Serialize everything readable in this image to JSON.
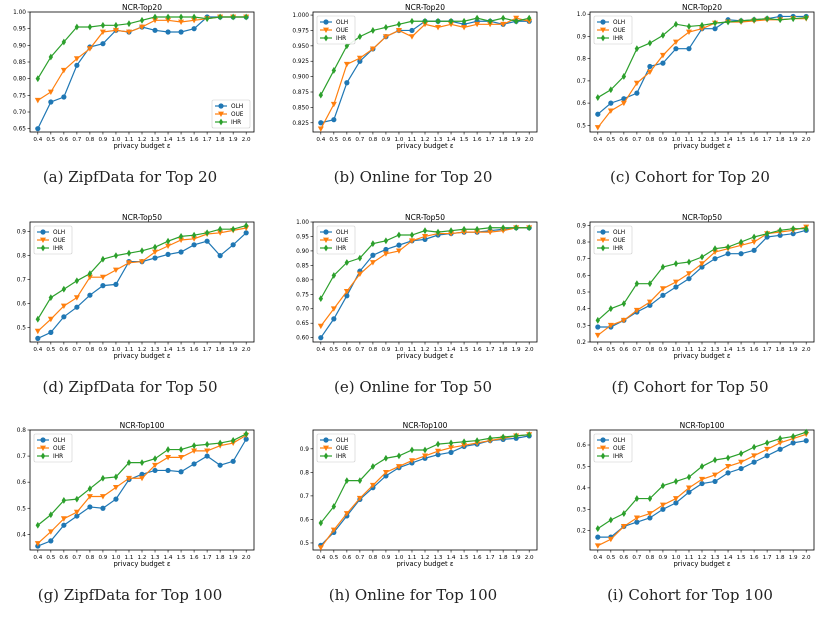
{
  "series_names": [
    "OLH",
    "OUE",
    "IHR"
  ],
  "colors": {
    "OLH": "#1f77b4",
    "OUE": "#ff7f0e",
    "IHR": "#2ca02c"
  },
  "markers": {
    "OLH": "circle",
    "OUE": "triangle-down",
    "IHR": "diamond"
  },
  "x_values": [
    0.4,
    0.5,
    0.6,
    0.7,
    0.8,
    0.9,
    1.0,
    1.1,
    1.2,
    1.3,
    1.4,
    1.5,
    1.6,
    1.7,
    1.8,
    1.9,
    2.0
  ],
  "x_tick_labels": [
    "0.4",
    "0.5",
    "0.6",
    "0.7",
    "0.8",
    "0.9",
    "1.0",
    "1.1",
    "1.2",
    "1.3",
    "1.4",
    "1.5",
    "1.6",
    "1.7",
    "1.8",
    "1.9",
    "2.0"
  ],
  "xlabel": "privacy budget ε",
  "chart_data": [
    {
      "type": "line",
      "title": "NCR-Top20",
      "caption": "(a) ZipfData for Top 20",
      "xlabel": "privacy budget ε",
      "ylim": [
        0.64,
        1.0
      ],
      "legend": "lower-right",
      "yticks": [
        "0.65",
        "0.70",
        "0.75",
        "0.80",
        "0.85",
        "0.90",
        "0.95",
        "1.00"
      ],
      "ytick_vals": [
        0.65,
        0.7,
        0.75,
        0.8,
        0.85,
        0.9,
        0.95,
        1.0
      ],
      "x": [
        0.4,
        0.5,
        0.6,
        0.7,
        0.8,
        0.9,
        1.0,
        1.1,
        1.2,
        1.3,
        1.4,
        1.5,
        1.6,
        1.7,
        1.8,
        1.9,
        2.0
      ],
      "series": [
        {
          "name": "OLH",
          "values": [
            0.65,
            0.73,
            0.745,
            0.84,
            0.895,
            0.905,
            0.945,
            0.94,
            0.955,
            0.945,
            0.94,
            0.94,
            0.95,
            0.985,
            0.985,
            0.985,
            0.985
          ]
        },
        {
          "name": "OUE",
          "values": [
            0.735,
            0.76,
            0.825,
            0.86,
            0.89,
            0.94,
            0.945,
            0.94,
            0.955,
            0.975,
            0.975,
            0.97,
            0.975,
            0.98,
            0.985,
            0.985,
            0.985
          ]
        },
        {
          "name": "IHR",
          "values": [
            0.8,
            0.865,
            0.91,
            0.955,
            0.955,
            0.96,
            0.96,
            0.965,
            0.975,
            0.985,
            0.985,
            0.985,
            0.985,
            0.98,
            0.985,
            0.985,
            0.985
          ]
        }
      ]
    },
    {
      "type": "line",
      "title": "NCR-Top20",
      "caption": "(b) Online for Top 20",
      "xlabel": "privacy budget ε",
      "ylim": [
        0.81,
        1.005
      ],
      "legend": "upper-left",
      "yticks": [
        "0.825",
        "0.850",
        "0.875",
        "0.900",
        "0.925",
        "0.950",
        "0.975",
        "1.000"
      ],
      "ytick_vals": [
        0.825,
        0.85,
        0.875,
        0.9,
        0.925,
        0.95,
        0.975,
        1.0
      ],
      "x": [
        0.4,
        0.5,
        0.6,
        0.7,
        0.8,
        0.9,
        1.0,
        1.1,
        1.2,
        1.3,
        1.4,
        1.5,
        1.6,
        1.7,
        1.8,
        1.9,
        2.0
      ],
      "series": [
        {
          "name": "OLH",
          "values": [
            0.825,
            0.83,
            0.89,
            0.925,
            0.945,
            0.965,
            0.975,
            0.975,
            0.99,
            0.99,
            0.99,
            0.985,
            0.99,
            0.99,
            0.985,
            0.99,
            0.99
          ]
        },
        {
          "name": "OUE",
          "values": [
            0.815,
            0.855,
            0.92,
            0.93,
            0.945,
            0.965,
            0.975,
            0.965,
            0.985,
            0.98,
            0.985,
            0.98,
            0.985,
            0.985,
            0.985,
            0.995,
            0.99
          ]
        },
        {
          "name": "IHR",
          "values": [
            0.87,
            0.91,
            0.95,
            0.965,
            0.975,
            0.98,
            0.985,
            0.99,
            0.99,
            0.99,
            0.99,
            0.99,
            0.995,
            0.99,
            0.995,
            0.99,
            0.995
          ]
        }
      ]
    },
    {
      "type": "line",
      "title": "NCR-Top20",
      "caption": "(c) Cohort for Top 20",
      "xlabel": "privacy budget ε",
      "ylim": [
        0.47,
        1.01
      ],
      "legend": "upper-left",
      "yticks": [
        "0.5",
        "0.6",
        "0.7",
        "0.8",
        "0.9",
        "1.0"
      ],
      "ytick_vals": [
        0.5,
        0.6,
        0.7,
        0.8,
        0.9,
        1.0
      ],
      "x": [
        0.4,
        0.5,
        0.6,
        0.7,
        0.8,
        0.9,
        1.0,
        1.1,
        1.2,
        1.3,
        1.4,
        1.5,
        1.6,
        1.7,
        1.8,
        1.9,
        2.0
      ],
      "series": [
        {
          "name": "OLH",
          "values": [
            0.55,
            0.6,
            0.62,
            0.645,
            0.765,
            0.78,
            0.845,
            0.845,
            0.935,
            0.935,
            0.975,
            0.97,
            0.975,
            0.98,
            0.99,
            0.99,
            0.99
          ]
        },
        {
          "name": "OUE",
          "values": [
            0.49,
            0.565,
            0.6,
            0.69,
            0.74,
            0.815,
            0.875,
            0.92,
            0.935,
            0.96,
            0.965,
            0.965,
            0.97,
            0.975,
            0.975,
            0.98,
            0.98
          ]
        },
        {
          "name": "IHR",
          "values": [
            0.625,
            0.66,
            0.72,
            0.845,
            0.87,
            0.905,
            0.955,
            0.945,
            0.95,
            0.96,
            0.965,
            0.97,
            0.975,
            0.98,
            0.975,
            0.98,
            0.985
          ]
        }
      ]
    },
    {
      "type": "line",
      "title": "NCR-Top50",
      "caption": "(d) ZipfData for Top 50",
      "xlabel": "privacy budget ε",
      "ylim": [
        0.44,
        0.94
      ],
      "legend": "upper-left",
      "yticks": [
        "0.5",
        "0.6",
        "0.7",
        "0.8",
        "0.9"
      ],
      "ytick_vals": [
        0.5,
        0.6,
        0.7,
        0.8,
        0.9
      ],
      "x": [
        0.4,
        0.5,
        0.6,
        0.7,
        0.8,
        0.9,
        1.0,
        1.1,
        1.2,
        1.3,
        1.4,
        1.5,
        1.6,
        1.7,
        1.8,
        1.9,
        2.0
      ],
      "series": [
        {
          "name": "OLH",
          "values": [
            0.455,
            0.48,
            0.545,
            0.585,
            0.635,
            0.675,
            0.68,
            0.775,
            0.775,
            0.79,
            0.805,
            0.815,
            0.845,
            0.86,
            0.8,
            0.845,
            0.895
          ]
        },
        {
          "name": "OUE",
          "values": [
            0.485,
            0.535,
            0.59,
            0.625,
            0.71,
            0.71,
            0.74,
            0.77,
            0.775,
            0.815,
            0.84,
            0.865,
            0.87,
            0.89,
            0.895,
            0.905,
            0.915
          ]
        },
        {
          "name": "IHR",
          "values": [
            0.535,
            0.625,
            0.66,
            0.695,
            0.725,
            0.785,
            0.8,
            0.81,
            0.82,
            0.835,
            0.86,
            0.88,
            0.885,
            0.895,
            0.91,
            0.91,
            0.925
          ]
        }
      ]
    },
    {
      "type": "line",
      "title": "NCR-Top50",
      "caption": "(e) Online for Top 50",
      "xlabel": "privacy budget ε",
      "ylim": [
        0.585,
        1.0
      ],
      "legend": "upper-left",
      "yticks": [
        "0.60",
        "0.65",
        "0.70",
        "0.75",
        "0.80",
        "0.85",
        "0.90",
        "0.95",
        "1.00"
      ],
      "ytick_vals": [
        0.6,
        0.65,
        0.7,
        0.75,
        0.8,
        0.85,
        0.9,
        0.95,
        1.0
      ],
      "x": [
        0.4,
        0.5,
        0.6,
        0.7,
        0.8,
        0.9,
        1.0,
        1.1,
        1.2,
        1.3,
        1.4,
        1.5,
        1.6,
        1.7,
        1.8,
        1.9,
        2.0
      ],
      "series": [
        {
          "name": "OLH",
          "values": [
            0.6,
            0.665,
            0.745,
            0.83,
            0.885,
            0.905,
            0.92,
            0.935,
            0.94,
            0.955,
            0.96,
            0.965,
            0.965,
            0.97,
            0.975,
            0.98,
            0.98
          ]
        },
        {
          "name": "OUE",
          "values": [
            0.64,
            0.7,
            0.76,
            0.82,
            0.86,
            0.89,
            0.9,
            0.935,
            0.95,
            0.96,
            0.96,
            0.965,
            0.965,
            0.965,
            0.97,
            0.98,
            0.98
          ]
        },
        {
          "name": "IHR",
          "values": [
            0.735,
            0.815,
            0.86,
            0.875,
            0.925,
            0.935,
            0.955,
            0.955,
            0.97,
            0.965,
            0.97,
            0.975,
            0.975,
            0.98,
            0.98,
            0.98,
            0.98
          ]
        }
      ]
    },
    {
      "type": "line",
      "title": "NCR-Top50",
      "caption": "(f) Cohort for Top 50",
      "xlabel": "privacy budget ε",
      "ylim": [
        0.2,
        0.92
      ],
      "legend": "upper-left",
      "yticks": [
        "0.2",
        "0.3",
        "0.4",
        "0.5",
        "0.6",
        "0.7",
        "0.8",
        "0.9"
      ],
      "ytick_vals": [
        0.2,
        0.3,
        0.4,
        0.5,
        0.6,
        0.7,
        0.8,
        0.9
      ],
      "x": [
        0.4,
        0.5,
        0.6,
        0.7,
        0.8,
        0.9,
        1.0,
        1.1,
        1.2,
        1.3,
        1.4,
        1.5,
        1.6,
        1.7,
        1.8,
        1.9,
        2.0
      ],
      "series": [
        {
          "name": "OLH",
          "values": [
            0.29,
            0.29,
            0.33,
            0.38,
            0.42,
            0.48,
            0.53,
            0.58,
            0.65,
            0.7,
            0.73,
            0.73,
            0.75,
            0.83,
            0.84,
            0.85,
            0.87
          ]
        },
        {
          "name": "OUE",
          "values": [
            0.24,
            0.3,
            0.33,
            0.39,
            0.44,
            0.52,
            0.56,
            0.61,
            0.67,
            0.74,
            0.76,
            0.78,
            0.8,
            0.85,
            0.86,
            0.87,
            0.89
          ]
        },
        {
          "name": "IHR",
          "values": [
            0.33,
            0.4,
            0.43,
            0.55,
            0.55,
            0.65,
            0.67,
            0.68,
            0.71,
            0.76,
            0.77,
            0.8,
            0.83,
            0.85,
            0.87,
            0.88,
            0.88
          ]
        }
      ]
    },
    {
      "type": "line",
      "title": "NCR-Top100",
      "caption": "(g) ZipfData for Top 100",
      "xlabel": "privacy budget ε",
      "ylim": [
        0.34,
        0.8
      ],
      "legend": "upper-left",
      "yticks": [
        "0.4",
        "0.5",
        "0.6",
        "0.7",
        "0.8"
      ],
      "ytick_vals": [
        0.4,
        0.5,
        0.6,
        0.7,
        0.8
      ],
      "x": [
        0.4,
        0.5,
        0.6,
        0.7,
        0.8,
        0.9,
        1.0,
        1.1,
        1.2,
        1.3,
        1.4,
        1.5,
        1.6,
        1.7,
        1.8,
        1.9,
        2.0
      ],
      "series": [
        {
          "name": "OLH",
          "values": [
            0.355,
            0.375,
            0.435,
            0.47,
            0.505,
            0.5,
            0.535,
            0.61,
            0.63,
            0.645,
            0.645,
            0.64,
            0.67,
            0.7,
            0.665,
            0.68,
            0.765
          ]
        },
        {
          "name": "OUE",
          "values": [
            0.365,
            0.41,
            0.46,
            0.485,
            0.545,
            0.545,
            0.58,
            0.615,
            0.615,
            0.665,
            0.695,
            0.695,
            0.72,
            0.72,
            0.74,
            0.75,
            0.78
          ]
        },
        {
          "name": "IHR",
          "values": [
            0.435,
            0.475,
            0.53,
            0.535,
            0.575,
            0.615,
            0.62,
            0.675,
            0.675,
            0.69,
            0.725,
            0.725,
            0.74,
            0.745,
            0.75,
            0.76,
            0.785
          ]
        }
      ]
    },
    {
      "type": "line",
      "title": "NCR-Top100",
      "caption": "(h) Online for Top 100",
      "xlabel": "privacy budget ε",
      "ylim": [
        0.47,
        0.98
      ],
      "legend": "upper-left",
      "yticks": [
        "0.5",
        "0.6",
        "0.7",
        "0.8",
        "0.9"
      ],
      "ytick_vals": [
        0.5,
        0.6,
        0.7,
        0.8,
        0.9
      ],
      "x": [
        0.4,
        0.5,
        0.6,
        0.7,
        0.8,
        0.9,
        1.0,
        1.1,
        1.2,
        1.3,
        1.4,
        1.5,
        1.6,
        1.7,
        1.8,
        1.9,
        2.0
      ],
      "series": [
        {
          "name": "OLH",
          "values": [
            0.49,
            0.545,
            0.615,
            0.685,
            0.735,
            0.785,
            0.82,
            0.84,
            0.86,
            0.875,
            0.885,
            0.91,
            0.92,
            0.935,
            0.94,
            0.945,
            0.955
          ]
        },
        {
          "name": "OUE",
          "values": [
            0.48,
            0.555,
            0.625,
            0.69,
            0.745,
            0.8,
            0.825,
            0.85,
            0.87,
            0.89,
            0.905,
            0.915,
            0.925,
            0.935,
            0.945,
            0.955,
            0.96
          ]
        },
        {
          "name": "IHR",
          "values": [
            0.585,
            0.655,
            0.765,
            0.765,
            0.825,
            0.86,
            0.87,
            0.895,
            0.895,
            0.92,
            0.925,
            0.93,
            0.935,
            0.945,
            0.95,
            0.955,
            0.96
          ]
        }
      ]
    },
    {
      "type": "line",
      "title": "NCR-Top100",
      "caption": "(i) Cohort for Top 100",
      "xlabel": "privacy budget ε",
      "ylim": [
        0.11,
        0.67
      ],
      "legend": "upper-left",
      "yticks": [
        "0.2",
        "0.3",
        "0.4",
        "0.5",
        "0.6"
      ],
      "ytick_vals": [
        0.2,
        0.3,
        0.4,
        0.5,
        0.6
      ],
      "x": [
        0.4,
        0.5,
        0.6,
        0.7,
        0.8,
        0.9,
        1.0,
        1.1,
        1.2,
        1.3,
        1.4,
        1.5,
        1.6,
        1.7,
        1.8,
        1.9,
        2.0
      ],
      "series": [
        {
          "name": "OLH",
          "values": [
            0.17,
            0.17,
            0.22,
            0.24,
            0.26,
            0.3,
            0.33,
            0.38,
            0.42,
            0.43,
            0.47,
            0.49,
            0.52,
            0.55,
            0.58,
            0.61,
            0.62
          ]
        },
        {
          "name": "OUE",
          "values": [
            0.13,
            0.16,
            0.22,
            0.26,
            0.28,
            0.32,
            0.35,
            0.4,
            0.44,
            0.46,
            0.5,
            0.52,
            0.55,
            0.58,
            0.61,
            0.63,
            0.65
          ]
        },
        {
          "name": "IHR",
          "values": [
            0.21,
            0.25,
            0.28,
            0.35,
            0.35,
            0.41,
            0.43,
            0.45,
            0.5,
            0.53,
            0.54,
            0.56,
            0.59,
            0.61,
            0.63,
            0.64,
            0.66
          ]
        }
      ]
    }
  ]
}
